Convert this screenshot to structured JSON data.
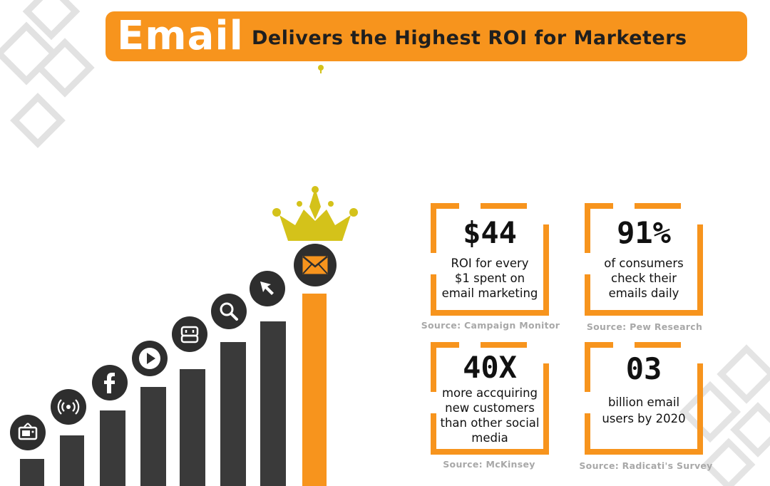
{
  "header": {
    "email_word": "Email",
    "subtitle": "Delivers the Highest ROI for Marketers"
  },
  "colors": {
    "accent": "#f7941d",
    "bar": "#3a3a3a",
    "crown": "#d4c21a",
    "icon_bg": "#2e2e2e",
    "source_text": "#a8a8a8"
  },
  "chart_icons": [
    "tv-icon",
    "broadcast-icon",
    "facebook-icon",
    "play-icon",
    "chat-icon",
    "search-icon",
    "cursor-icon",
    "envelope-icon"
  ],
  "stats": [
    {
      "value": "$44",
      "desc_lines": [
        "ROI for every",
        "$1 spent on",
        "email marketing"
      ],
      "source": "Source: Campaign Monitor"
    },
    {
      "value": "91%",
      "desc_lines": [
        "of consumers",
        "check their",
        "emails daily"
      ],
      "source": "Source: Pew Research"
    },
    {
      "value": "40X",
      "desc_lines": [
        "more accquiring",
        "new customers",
        "than other social",
        "media"
      ],
      "source": "Source: McKinsey"
    },
    {
      "value": "03",
      "desc_lines": [
        "billion email",
        "users by 2020"
      ],
      "source": "Source: Radicati's Survey"
    }
  ]
}
